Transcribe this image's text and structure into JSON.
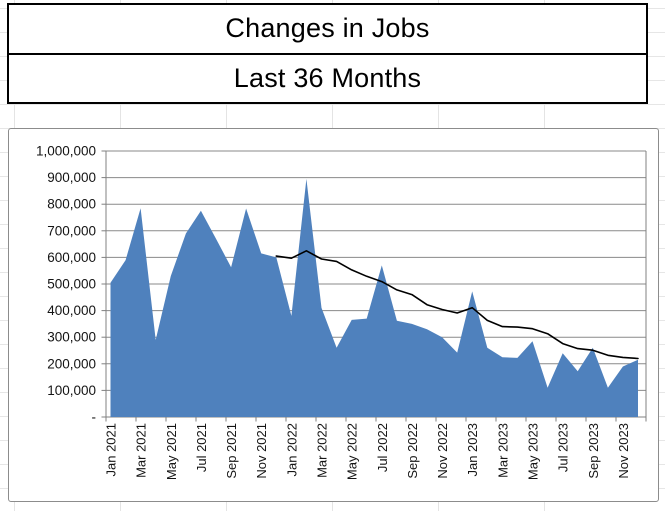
{
  "titles": {
    "line1": "Changes in Jobs",
    "line2": "Last 36 Months"
  },
  "chart_data": {
    "type": "area",
    "months": [
      "Jan 2021",
      "Feb 2021",
      "Mar 2021",
      "Apr 2021",
      "May 2021",
      "Jun 2021",
      "Jul 2021",
      "Aug 2021",
      "Sep 2021",
      "Oct 2021",
      "Nov 2021",
      "Dec 2021",
      "Jan 2022",
      "Feb 2022",
      "Mar 2022",
      "Apr 2022",
      "May 2022",
      "Jun 2022",
      "Jul 2022",
      "Aug 2022",
      "Sep 2022",
      "Oct 2022",
      "Nov 2022",
      "Dec 2022",
      "Jan 2023",
      "Feb 2023",
      "Mar 2023",
      "Apr 2023",
      "May 2023",
      "Jun 2023",
      "Jul 2023",
      "Aug 2023",
      "Sep 2023",
      "Oct 2023",
      "Nov 2023",
      "Dec 2023"
    ],
    "series": [
      {
        "id": "monthly-jobs-area",
        "type": "area",
        "color": "#4F81BD",
        "values": [
          505000,
          590000,
          785000,
          290000,
          530000,
          690000,
          775000,
          670000,
          563000,
          784000,
          615000,
          600000,
          380000,
          895000,
          410000,
          260000,
          365000,
          370000,
          570000,
          362000,
          350000,
          330000,
          300000,
          242000,
          472000,
          260000,
          225000,
          222000,
          285000,
          110000,
          240000,
          172000,
          260000,
          110000,
          190000,
          215000
        ]
      },
      {
        "id": "smoothed-average-line",
        "type": "line",
        "color": "#000000",
        "start_index": 11,
        "values": [
          605000,
          597000,
          625000,
          594000,
          585000,
          553000,
          529000,
          509000,
          478000,
          460000,
          422000,
          404000,
          391000,
          411000,
          363000,
          340000,
          338000,
          332000,
          313000,
          276000,
          257000,
          251000,
          232000,
          224000,
          220000
        ]
      }
    ],
    "y_axis": {
      "min": 0,
      "max": 1000000,
      "tick_interval": 100000,
      "tick_labels": [
        "-",
        "100,000",
        "200,000",
        "300,000",
        "400,000",
        "500,000",
        "600,000",
        "700,000",
        "800,000",
        "900,000",
        "1,000,000"
      ]
    },
    "x_axis": {
      "label_every": 2,
      "tick_labels": [
        "Jan 2021",
        "Mar 2021",
        "May 2021",
        "Jul 2021",
        "Sep 2021",
        "Nov 2021",
        "Jan 2022",
        "Mar 2022",
        "May 2022",
        "Jul 2022",
        "Sep 2022",
        "Nov 2022",
        "Jan 2023",
        "Mar 2023",
        "May 2023",
        "Jul 2023",
        "Sep 2023",
        "Nov 2023"
      ]
    },
    "grid": {
      "show": true,
      "color": "#8a8a8a"
    },
    "plot": {
      "background": "#FFFFFF",
      "axis_color": "#808080"
    },
    "legend": "none"
  }
}
